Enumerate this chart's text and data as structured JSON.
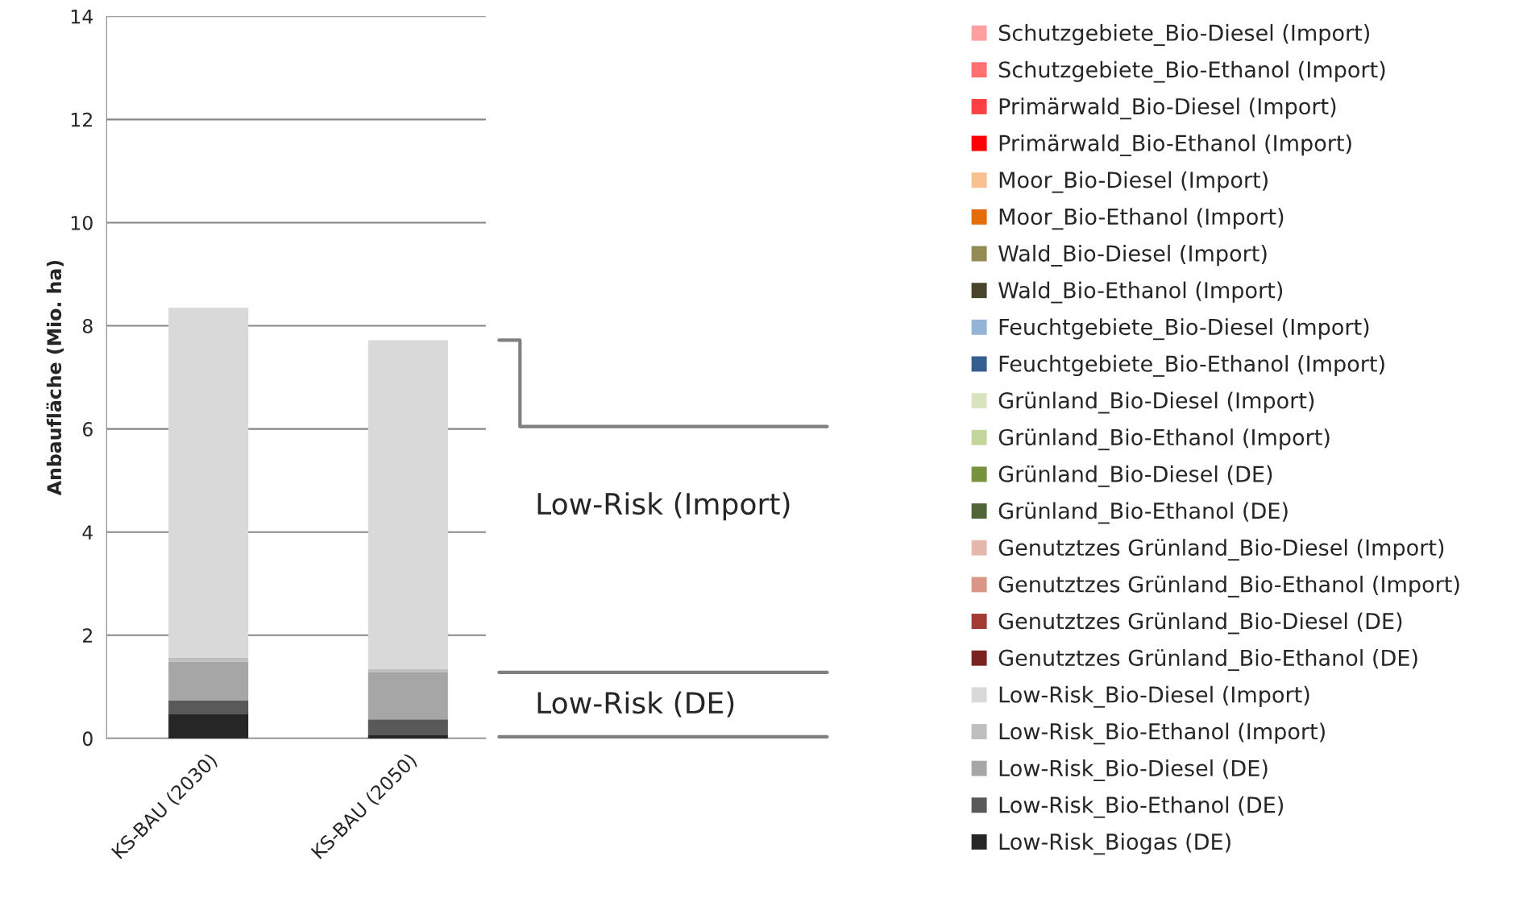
{
  "chart_data": {
    "type": "bar",
    "stacked": true,
    "ylabel": "Anbaufläche (Mio. ha)",
    "categories": [
      "KS-BAU (2030)",
      "KS-BAU (2050)"
    ],
    "ylim": [
      0,
      14
    ],
    "yticks": [
      0,
      2,
      4,
      6,
      8,
      10,
      12,
      14
    ],
    "grid": "y",
    "legend": "right",
    "annotations": [
      "Low-Risk (Import)",
      "Low-Risk (DE)"
    ],
    "series": [
      {
        "name": "Low-Risk_Biogas (DE)",
        "color": "#262626",
        "values": [
          0.48,
          0.06
        ]
      },
      {
        "name": "Low-Risk_Bio-Ethanol (DE)",
        "color": "#595959",
        "values": [
          0.25,
          0.31
        ]
      },
      {
        "name": "Low-Risk_Bio-Diesel (DE)",
        "color": "#a6a6a6",
        "values": [
          0.76,
          0.91
        ]
      },
      {
        "name": "Low-Risk_Bio-Ethanol (Import)",
        "color": "#bfbfbf",
        "values": [
          0.07,
          0.07
        ]
      },
      {
        "name": "Low-Risk_Bio-Diesel (Import)",
        "color": "#d9d9d9",
        "values": [
          6.79,
          6.37
        ]
      },
      {
        "name": "Genutztzes Grünland_Bio-Ethanol (DE)",
        "color": "#7b2323",
        "values": [
          0,
          0
        ]
      },
      {
        "name": "Genutztzes Grünland_Bio-Diesel (DE)",
        "color": "#a33a33",
        "values": [
          0,
          0
        ]
      },
      {
        "name": "Genutztzes Grünland_Bio-Ethanol (Import)",
        "color": "#d99686",
        "values": [
          0,
          0
        ]
      },
      {
        "name": "Genutztzes Grünland_Bio-Diesel (Import)",
        "color": "#e6b8ab",
        "values": [
          0,
          0
        ]
      },
      {
        "name": "Grünland_Bio-Ethanol (DE)",
        "color": "#4f6437",
        "values": [
          0,
          0
        ]
      },
      {
        "name": "Grünland_Bio-Diesel (DE)",
        "color": "#77933c",
        "values": [
          0,
          0
        ]
      },
      {
        "name": "Grünland_Bio-Ethanol (Import)",
        "color": "#c3d69b",
        "values": [
          0,
          0
        ]
      },
      {
        "name": "Grünland_Bio-Diesel (Import)",
        "color": "#d7e4bd",
        "values": [
          0,
          0
        ]
      },
      {
        "name": "Feuchtgebiete_Bio-Ethanol (Import)",
        "color": "#365f91",
        "values": [
          0,
          0
        ]
      },
      {
        "name": "Feuchtgebiete_Bio-Diesel (Import)",
        "color": "#95b3d7",
        "values": [
          0,
          0
        ]
      },
      {
        "name": "Wald_Bio-Ethanol (Import)",
        "color": "#4a452a",
        "values": [
          0,
          0
        ]
      },
      {
        "name": "Wald_Bio-Diesel (Import)",
        "color": "#948a54",
        "values": [
          0,
          0
        ]
      },
      {
        "name": "Moor_Bio-Ethanol (Import)",
        "color": "#e46c0a",
        "values": [
          0,
          0
        ]
      },
      {
        "name": "Moor_Bio-Diesel (Import)",
        "color": "#fac090",
        "values": [
          0,
          0
        ]
      },
      {
        "name": "Primärwald_Bio-Ethanol (Import)",
        "color": "#ff0000",
        "values": [
          0,
          0
        ]
      },
      {
        "name": "Primärwald_Bio-Diesel (Import)",
        "color": "#ff4040",
        "values": [
          0,
          0
        ]
      },
      {
        "name": "Schutzgebiete_Bio-Ethanol (Import)",
        "color": "#ff7070",
        "values": [
          0,
          0
        ]
      },
      {
        "name": "Schutzgebiete_Bio-Diesel (Import)",
        "color": "#ffa0a0",
        "values": [
          0,
          0
        ]
      }
    ]
  }
}
